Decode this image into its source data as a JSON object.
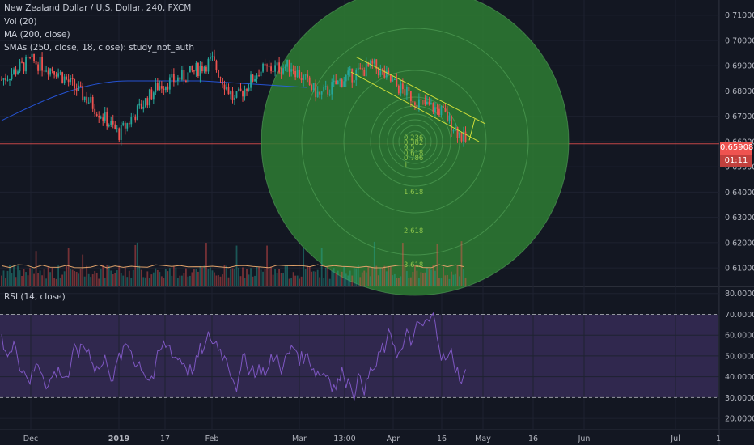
{
  "header": {
    "symbol_line": "New Zealand Dollar / U.S. Dollar, 240, FXCM",
    "vol_line": "Vol (20)",
    "ma_line": "MA (200, close)",
    "sma_line": "SMAs (250, close, 18, close): study_not_auth",
    "rsi_line": "RSI (14, close)"
  },
  "price_axis": {
    "ticks": [
      "0.71000",
      "0.70000",
      "0.69000",
      "0.68000",
      "0.67000",
      "0.66000",
      "0.65000",
      "0.64000",
      "0.63000",
      "0.62000",
      "0.61000"
    ],
    "tick_values": [
      0.71,
      0.7,
      0.69,
      0.68,
      0.67,
      0.66,
      0.65,
      0.64,
      0.63,
      0.62,
      0.61
    ],
    "last_price": "0.65908",
    "countdown": "01:11",
    "last_price_color": "#ef5350"
  },
  "rsi_axis": {
    "ticks": [
      "80.0000",
      "70.0000",
      "60.0000",
      "50.0000",
      "40.0000",
      "30.0000",
      "20.0000"
    ],
    "tick_values": [
      80,
      70,
      60,
      50,
      40,
      30,
      20
    ],
    "upper_band": 70,
    "lower_band": 30
  },
  "time_axis": {
    "labels": [
      "Dec",
      "2019",
      "17",
      "Feb",
      "Mar",
      "13:00",
      "Apr",
      "16",
      "May",
      "16",
      "Jun",
      "Jul",
      "1"
    ]
  },
  "fib_circles": {
    "levels": [
      "0.236",
      "0.382",
      "0.5",
      "0.618",
      "0.786",
      "1",
      "1.618",
      "2.618",
      "3.618"
    ],
    "color": "#2e7d32"
  },
  "chart_data": {
    "type": "candlestick",
    "symbol": "NZDUSD",
    "timeframe": "240",
    "ylim": [
      0.603,
      0.716
    ],
    "rsi_ylim": [
      15,
      83
    ],
    "price_path": [
      [
        "Nov end",
        0.684
      ],
      [
        "Dec",
        0.692
      ],
      [
        "mid Dec",
        0.688
      ],
      [
        "late Dec",
        0.676
      ],
      [
        "2019",
        0.663
      ],
      [
        "17",
        0.682
      ],
      [
        "late Jan",
        0.686
      ],
      [
        "Feb",
        0.692
      ],
      [
        "mid Feb",
        0.676
      ],
      [
        "late Feb",
        0.688
      ],
      [
        "Mar",
        0.69
      ],
      [
        "early Mar",
        0.678
      ],
      [
        "13:00",
        0.685
      ],
      [
        "late Mar",
        0.69
      ],
      [
        "Apr",
        0.683
      ],
      [
        "mid Apr",
        0.675
      ],
      [
        "16",
        0.672
      ],
      [
        "late Apr",
        0.659
      ]
    ],
    "colors": {
      "up": "#26a69a",
      "down": "#ef5350",
      "ma": "#2962ff",
      "channel": "#cddc39",
      "rsi": "#7e57c2"
    }
  }
}
